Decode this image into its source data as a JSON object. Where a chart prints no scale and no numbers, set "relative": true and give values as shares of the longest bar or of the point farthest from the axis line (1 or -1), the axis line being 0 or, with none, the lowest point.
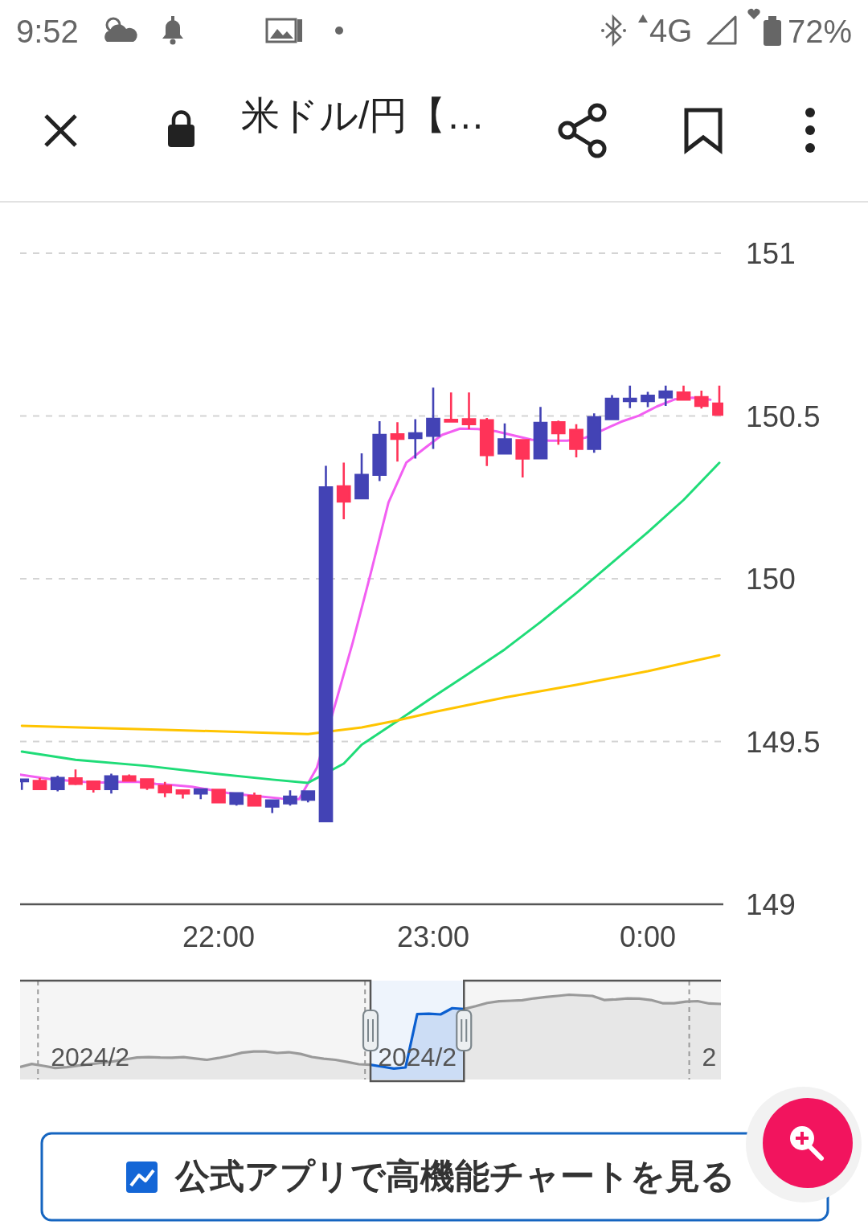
{
  "chart_data": [
    {
      "type": "candlestick",
      "title": "米ドル/円【…",
      "annotations": [
        "9:52",
        "4G",
        "72%",
        "公式アプリで高機能チャートを見る"
      ],
      "x": [
        21.0833,
        21.1667,
        21.25,
        21.3333,
        21.4167,
        21.5,
        21.5833,
        21.6667,
        21.75,
        21.8333,
        21.9167,
        22,
        22.0833,
        22.1667,
        22.25,
        22.3333,
        22.4167,
        22.5,
        22.5833,
        22.6667,
        22.75,
        22.8333,
        22.9167,
        23,
        23.0833,
        23.1667,
        23.25,
        23.3333,
        23.4167,
        23.5,
        23.5833,
        23.6667,
        23.75,
        23.8333,
        23.9167,
        24,
        24.0833,
        24.1667,
        24.25,
        24.3333
      ],
      "ohlc": [
        [
          149.378,
          149.383,
          149.351,
          149.383
        ],
        [
          149.379,
          149.388,
          149.354,
          149.354
        ],
        [
          149.354,
          149.395,
          149.347,
          149.388
        ],
        [
          149.387,
          149.414,
          149.366,
          149.37
        ],
        [
          149.377,
          149.38,
          149.343,
          149.354
        ],
        [
          149.354,
          149.401,
          149.34,
          149.393
        ],
        [
          149.393,
          149.399,
          149.38,
          149.38
        ],
        [
          149.384,
          149.384,
          149.351,
          149.358
        ],
        [
          149.364,
          149.376,
          149.329,
          149.344
        ],
        [
          149.35,
          149.35,
          149.325,
          149.34
        ],
        [
          149.34,
          149.353,
          149.323,
          149.353
        ],
        [
          149.352,
          149.354,
          149.313,
          149.313
        ],
        [
          149.309,
          149.344,
          149.303,
          149.341
        ],
        [
          149.333,
          149.343,
          149.303,
          149.303
        ],
        [
          149.3,
          149.319,
          149.28,
          149.319
        ],
        [
          149.31,
          149.35,
          149.303,
          149.331
        ],
        [
          149.321,
          149.347,
          149.313,
          149.347
        ],
        [
          149.255,
          150.347,
          149.255,
          150.281
        ],
        [
          150.284,
          150.357,
          150.183,
          150.237
        ],
        [
          150.247,
          150.385,
          150.247,
          150.319
        ],
        [
          150.319,
          150.484,
          150.3,
          150.442
        ],
        [
          150.444,
          150.481,
          150.36,
          150.43
        ],
        [
          150.432,
          150.49,
          150.369,
          150.447
        ],
        [
          150.439,
          150.587,
          150.399,
          150.491
        ],
        [
          150.488,
          150.572,
          150.483,
          150.483
        ],
        [
          150.49,
          150.572,
          150.459,
          150.475
        ],
        [
          150.487,
          150.494,
          150.346,
          150.38
        ],
        [
          150.385,
          150.477,
          150.385,
          150.428
        ],
        [
          150.426,
          150.426,
          150.311,
          150.369
        ],
        [
          150.37,
          150.528,
          150.37,
          150.479
        ],
        [
          150.481,
          150.486,
          150.412,
          150.447
        ],
        [
          150.457,
          150.475,
          150.373,
          150.399
        ],
        [
          150.399,
          150.508,
          150.387,
          150.496
        ],
        [
          150.49,
          150.564,
          150.49,
          150.553
        ],
        [
          150.546,
          150.593,
          150.524,
          150.553
        ],
        [
          150.546,
          150.574,
          150.527,
          150.562
        ],
        [
          150.557,
          150.593,
          150.531,
          150.575
        ],
        [
          150.572,
          150.593,
          150.55,
          150.55
        ],
        [
          150.558,
          150.578,
          150.523,
          150.531
        ],
        [
          150.538,
          150.593,
          150.504,
          150.504
        ]
      ],
      "colors": [
        "#4343b5",
        "#ff3358",
        "#4343b5",
        "#ff3358",
        "#ff3358",
        "#4343b5",
        "#ff3358",
        "#ff3358",
        "#ff3358",
        "#ff3358",
        "#4343b5",
        "#ff3358",
        "#4343b5",
        "#ff3358",
        "#4343b5",
        "#4343b5",
        "#4343b5",
        "#4343b5",
        "#ff3358",
        "#4343b5",
        "#4343b5",
        "#ff3358",
        "#4343b5",
        "#4343b5",
        "#ff3358",
        "#ff3358",
        "#ff3358",
        "#4343b5",
        "#ff3358",
        "#4343b5",
        "#ff3358",
        "#ff3358",
        "#4343b5",
        "#4343b5",
        "#4343b5",
        "#4343b5",
        "#4343b5",
        "#ff3358",
        "#ff3358",
        "#ff3358"
      ],
      "series": [
        {
          "type": "line",
          "color": "#f25ff2",
          "x": [
            21.075,
            21.125,
            21.2083,
            21.2917,
            21.375,
            21.4583,
            21.5417,
            21.625,
            21.7083,
            21.7917,
            21.875,
            21.9583,
            22.0417,
            22.125,
            22.2083,
            22.2917,
            22.375,
            22.4583,
            22.5417,
            22.625,
            22.7083,
            22.7917,
            22.875,
            22.9583,
            23.0417,
            23.125,
            23.2083,
            23.2917,
            23.375,
            23.4583,
            23.5417,
            23.625,
            23.7083,
            23.7917,
            23.875,
            23.9583,
            24.0417,
            24.125,
            24.2083,
            24.2917
          ],
          "values": [
            149.398,
            149.393,
            149.385,
            149.38,
            149.376,
            149.374,
            149.376,
            149.376,
            149.37,
            149.366,
            149.361,
            149.352,
            149.342,
            149.336,
            149.33,
            149.325,
            149.323,
            149.42,
            149.61,
            149.804,
            150.015,
            150.234,
            150.357,
            150.4,
            150.442,
            150.461,
            150.46,
            150.453,
            150.44,
            150.427,
            150.424,
            150.424,
            150.433,
            150.457,
            150.482,
            150.501,
            150.529,
            150.551,
            150.556,
            150.55
          ]
        },
        {
          "type": "line",
          "color": "#1fdc78",
          "x": [
            21.0833,
            21.3333,
            21.6667,
            22,
            22.25,
            22.4167,
            22.5833,
            22.6667,
            22.8333,
            23,
            23.1667,
            23.3333,
            23.5,
            23.6667,
            23.8333,
            24,
            24.1667,
            24.3333
          ],
          "values": [
            149.469,
            149.444,
            149.425,
            149.4,
            149.383,
            149.373,
            149.432,
            149.49,
            149.563,
            149.637,
            149.709,
            149.783,
            149.867,
            149.956,
            150.049,
            150.143,
            150.242,
            150.356
          ]
        },
        {
          "type": "line",
          "color": "#ffc400",
          "x": [
            21.0833,
            21.75,
            22.4167,
            22.6667,
            22.8333,
            23,
            23.3333,
            23.6667,
            24,
            24.3333
          ],
          "values": [
            149.548,
            149.536,
            149.523,
            149.543,
            149.565,
            149.59,
            149.635,
            149.674,
            149.716,
            149.765
          ]
        }
      ],
      "xlim": [
        21.075,
        24.352
      ],
      "xticks": [
        {
          "value": 22,
          "label": "22:00"
        },
        {
          "value": 23,
          "label": "23:00"
        },
        {
          "value": 24,
          "label": "0:00"
        }
      ],
      "ylim": [
        149,
        151
      ],
      "yticks": [
        149,
        149.5,
        150,
        150.5,
        151
      ],
      "grid": "y"
    },
    {
      "type": "area",
      "relative": true,
      "categories": [
        null,
        null,
        null,
        null,
        null,
        null,
        "2024/2",
        null,
        null,
        null,
        null,
        null,
        null,
        null,
        null,
        null,
        null,
        null,
        null,
        null,
        null,
        null,
        null,
        null,
        null,
        null,
        null,
        null,
        null,
        null,
        null,
        null,
        null,
        null,
        "2024/2",
        null,
        null,
        null,
        null,
        null,
        null,
        null,
        null,
        null,
        null,
        null,
        null,
        null,
        null,
        null,
        null,
        null,
        null,
        null,
        null,
        null,
        null,
        null,
        null,
        "2",
        null
      ],
      "series": [
        {
          "color": "#9a9a9a",
          "values": [
            0.147,
            0.184,
            0.161,
            0.136,
            0.145,
            0.164,
            0.181,
            0.197,
            0.214,
            0.237,
            0.26,
            0.264,
            0.259,
            0.258,
            0.264,
            0.248,
            0.232,
            0.254,
            0.282,
            0.316,
            0.33,
            0.33,
            0.313,
            0.322,
            0.302,
            0.265,
            0.245,
            0.232,
            0.208,
            0.18,
            0.174,
            null,
            null,
            null,
            null,
            null,
            null,
            null,
            0.831,
            0.865,
            0.903,
            0.923,
            0.929,
            0.935,
            0.957,
            0.973,
            0.986,
            1,
            0.993,
            0.986,
            0.938,
            0.945,
            0.957,
            0.953,
            0.938,
            0.9,
            0.9,
            0.919,
            0.924,
            0.896,
            0.891
          ]
        },
        {
          "color": "#0b5fd0",
          "values": [
            null,
            null,
            null,
            null,
            null,
            null,
            null,
            null,
            null,
            null,
            null,
            null,
            null,
            null,
            null,
            null,
            null,
            null,
            null,
            null,
            null,
            null,
            null,
            null,
            null,
            null,
            null,
            null,
            null,
            null,
            0.174,
            0.152,
            0.129,
            0.142,
            0.772,
            0.777,
            0.768,
            0.841,
            0.831,
            null,
            null,
            null,
            null,
            null,
            null,
            null,
            null,
            null,
            null,
            null,
            null,
            null,
            null,
            null,
            null,
            null,
            null,
            null,
            null,
            null,
            null
          ]
        }
      ],
      "grid": "x"
    }
  ]
}
